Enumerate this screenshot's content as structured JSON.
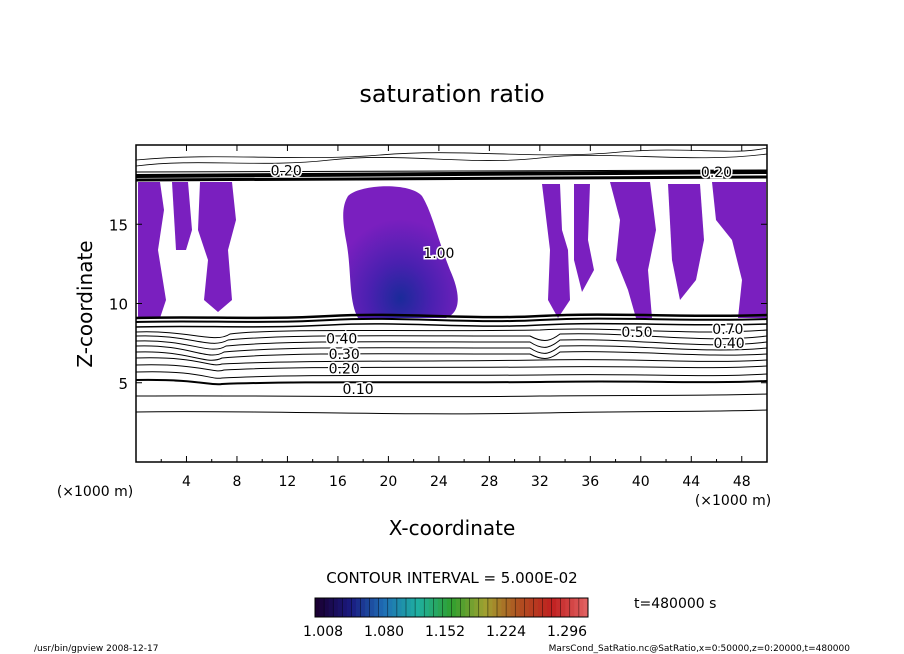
{
  "chart_data": {
    "type": "contour",
    "title": "saturation ratio",
    "xlabel": "X-coordinate",
    "ylabel": "Z-coordinate",
    "x_unit_left": "(×1000 m)",
    "x_unit_right": "(×1000 m)",
    "xlim": [
      0,
      50
    ],
    "ylim": [
      0,
      20
    ],
    "x_ticks": [
      4,
      8,
      12,
      16,
      20,
      24,
      28,
      32,
      36,
      40,
      44,
      48
    ],
    "y_ticks": [
      5,
      10,
      15
    ],
    "contour_interval_text": "CONTOUR INTERVAL = 5.000E-02",
    "time_text": "t=480000 s",
    "contour_labels": [
      {
        "text": "0.10",
        "x": 17.6,
        "z": 4.6
      },
      {
        "text": "0.20",
        "x": 16.5,
        "z": 5.9
      },
      {
        "text": "0.30",
        "x": 16.5,
        "z": 6.8
      },
      {
        "text": "0.40",
        "x": 16.3,
        "z": 7.8
      },
      {
        "text": "0.50",
        "x": 39.7,
        "z": 8.2
      },
      {
        "text": "0.40",
        "x": 47.0,
        "z": 7.5
      },
      {
        "text": "0.70",
        "x": 46.9,
        "z": 8.4
      },
      {
        "text": "0.20",
        "x": 46.0,
        "z": 18.3
      },
      {
        "text": "0.20",
        "x": 11.9,
        "z": 18.4
      },
      {
        "text": "1.00",
        "x": 24.0,
        "z": 13.2
      }
    ],
    "supersaturated_regions_range": [
      1.008,
      1.296
    ],
    "colorbar": {
      "ticks": [
        "1.008",
        "1.080",
        "1.152",
        "1.224",
        "1.296"
      ],
      "colors": [
        "#1a0033",
        "#1a1a80",
        "#1f6fb5",
        "#1fb0a0",
        "#2fa02f",
        "#a0a030",
        "#b05020",
        "#c02020",
        "#e06060"
      ]
    }
  },
  "footer": {
    "left": "/usr/bin/gpview   2008-12-17",
    "right": "MarsCond_SatRatio.nc@SatRatio,x=0:50000,z=0:20000,t=480000"
  }
}
